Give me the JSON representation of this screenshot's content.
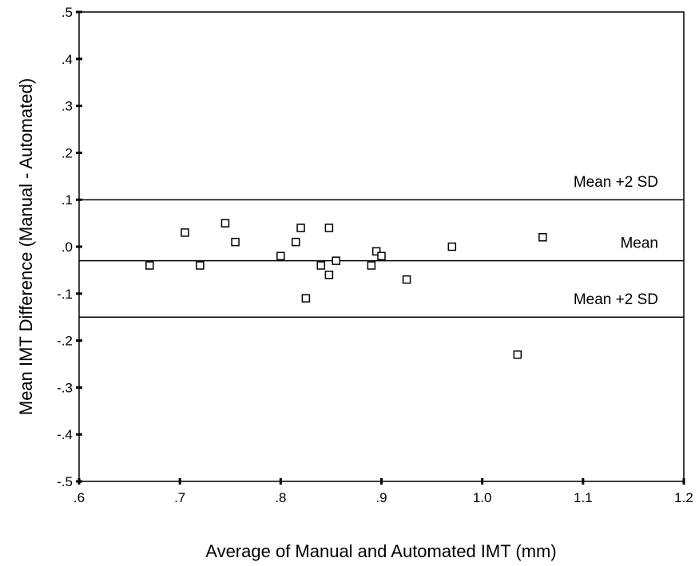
{
  "chart_data": {
    "type": "scatter",
    "xlabel": "Average of Manual and Automated IMT (mm)",
    "ylabel": "Mean IMT Difference (Manual - Automated)",
    "xlim": [
      0.6,
      1.2
    ],
    "ylim": [
      -0.5,
      0.5
    ],
    "x_ticks": [
      ".6",
      ".7",
      ".8",
      ".9",
      "1.0",
      "1.1",
      "1.2"
    ],
    "y_ticks": [
      ".5",
      ".4",
      ".3",
      ".2",
      ".1",
      ".0",
      "-.1",
      "-.2",
      "-.3",
      "-.4",
      "-.5"
    ],
    "grid": false,
    "marker": "open-square",
    "reference_lines": [
      {
        "label": "Mean +2 SD",
        "y": 0.1
      },
      {
        "label": "Mean",
        "y": -0.03
      },
      {
        "label": "Mean +2 SD",
        "y": -0.15
      }
    ],
    "points": [
      {
        "x": 0.67,
        "y": -0.04
      },
      {
        "x": 0.705,
        "y": 0.03
      },
      {
        "x": 0.72,
        "y": -0.04
      },
      {
        "x": 0.745,
        "y": 0.05
      },
      {
        "x": 0.755,
        "y": 0.01
      },
      {
        "x": 0.8,
        "y": -0.02
      },
      {
        "x": 0.815,
        "y": 0.01
      },
      {
        "x": 0.82,
        "y": 0.04
      },
      {
        "x": 0.825,
        "y": -0.11
      },
      {
        "x": 0.84,
        "y": -0.04
      },
      {
        "x": 0.848,
        "y": 0.04
      },
      {
        "x": 0.848,
        "y": -0.06
      },
      {
        "x": 0.855,
        "y": -0.03
      },
      {
        "x": 0.89,
        "y": -0.04
      },
      {
        "x": 0.895,
        "y": -0.01
      },
      {
        "x": 0.9,
        "y": -0.02
      },
      {
        "x": 0.925,
        "y": -0.07
      },
      {
        "x": 0.97,
        "y": 0.0
      },
      {
        "x": 1.035,
        "y": -0.23
      },
      {
        "x": 1.06,
        "y": 0.02
      }
    ]
  }
}
